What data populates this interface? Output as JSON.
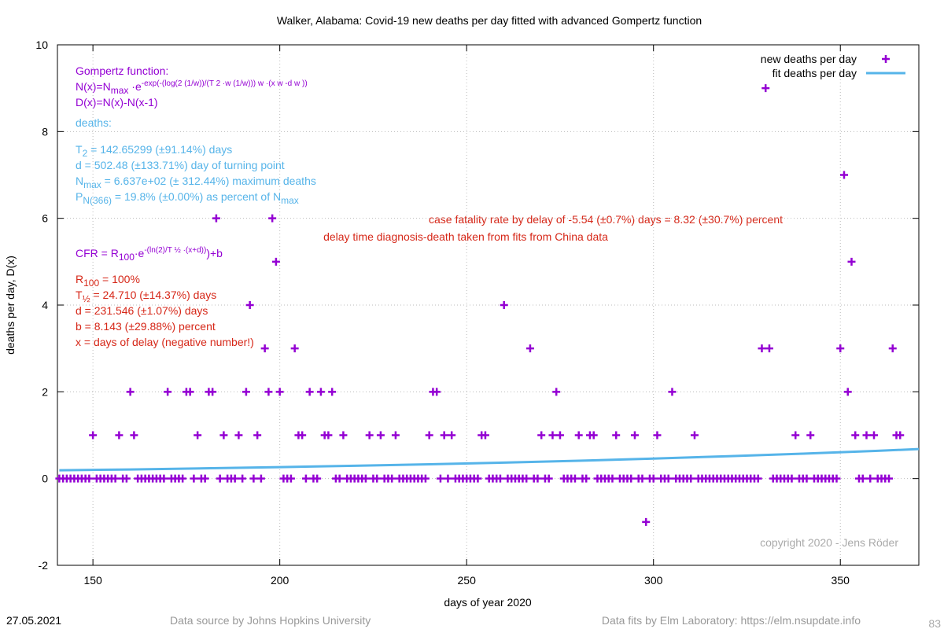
{
  "chart_data": {
    "type": "scatter",
    "title": "Walker,  Alabama: Covid-19 new deaths per day fitted with advanced Gompertz function",
    "x_label": "days of year 2020",
    "y_label": "deaths per day, D(x)",
    "xlim": [
      140.5,
      371
    ],
    "ylim": [
      -2,
      10
    ],
    "xticks": [
      150,
      200,
      250,
      300,
      350
    ],
    "yticks": [
      -2,
      0,
      2,
      4,
      6,
      8,
      10
    ],
    "grid": true,
    "legend": "top-right",
    "series": [
      {
        "name": "new deaths per day",
        "color": "#9400d3",
        "style": "points",
        "x": [
          141,
          142,
          143,
          144,
          145,
          146,
          147,
          148,
          149,
          150,
          151,
          152,
          153,
          154,
          155,
          156,
          157,
          158,
          159,
          160,
          161,
          162,
          163,
          164,
          165,
          166,
          167,
          168,
          169,
          170,
          171,
          172,
          173,
          174,
          175,
          176,
          177,
          178,
          179,
          180,
          181,
          182,
          183,
          184,
          185,
          186,
          187,
          188,
          189,
          190,
          191,
          192,
          193,
          194,
          195,
          196,
          197,
          198,
          199,
          200,
          201,
          202,
          203,
          204,
          205,
          206,
          207,
          208,
          209,
          210,
          211,
          212,
          213,
          214,
          215,
          216,
          217,
          218,
          219,
          220,
          221,
          222,
          223,
          224,
          225,
          226,
          227,
          228,
          229,
          230,
          231,
          232,
          233,
          234,
          235,
          236,
          237,
          238,
          239,
          240,
          241,
          242,
          243,
          244,
          245,
          246,
          247,
          248,
          249,
          250,
          251,
          252,
          253,
          254,
          255,
          256,
          257,
          258,
          259,
          260,
          261,
          262,
          263,
          264,
          265,
          266,
          267,
          268,
          269,
          270,
          271,
          272,
          273,
          274,
          275,
          276,
          277,
          278,
          279,
          280,
          281,
          282,
          283,
          284,
          285,
          286,
          287,
          288,
          289,
          290,
          291,
          292,
          293,
          294,
          295,
          296,
          297,
          298,
          299,
          300,
          301,
          302,
          303,
          304,
          305,
          306,
          307,
          308,
          309,
          310,
          311,
          312,
          313,
          314,
          315,
          316,
          317,
          318,
          319,
          320,
          321,
          322,
          323,
          324,
          325,
          326,
          327,
          328,
          329,
          330,
          331,
          332,
          333,
          334,
          335,
          336,
          337,
          338,
          339,
          340,
          341,
          342,
          343,
          344,
          345,
          346,
          347,
          348,
          349,
          350,
          351,
          352,
          353,
          354,
          355,
          356,
          357,
          358,
          359,
          360,
          361,
          362,
          363,
          364,
          365,
          366
        ],
        "values": [
          0,
          0,
          0,
          0,
          0,
          0,
          0,
          0,
          0,
          1,
          0,
          0,
          0,
          0,
          0,
          0,
          1,
          0,
          0,
          2,
          1,
          0,
          0,
          0,
          0,
          0,
          0,
          0,
          0,
          2,
          0,
          0,
          0,
          0,
          2,
          2,
          0,
          1,
          0,
          0,
          2,
          2,
          6,
          0,
          1,
          0,
          0,
          0,
          1,
          0,
          2,
          4,
          0,
          1,
          0,
          3,
          2,
          6,
          5,
          2,
          0,
          0,
          0,
          3,
          1,
          1,
          0,
          2,
          0,
          0,
          2,
          1,
          1,
          2,
          0,
          0,
          1,
          0,
          0,
          0,
          0,
          0,
          0,
          1,
          0,
          0,
          1,
          0,
          0,
          0,
          1,
          0,
          0,
          0,
          0,
          0,
          0,
          0,
          0,
          1,
          2,
          2,
          0,
          1,
          0,
          1,
          0,
          0,
          0,
          0,
          0,
          0,
          0,
          1,
          1,
          0,
          0,
          0,
          0,
          4,
          0,
          0,
          0,
          0,
          0,
          0,
          3,
          0,
          0,
          1,
          0,
          0,
          1,
          2,
          1,
          0,
          0,
          0,
          0,
          1,
          0,
          0,
          1,
          1,
          0,
          0,
          0,
          0,
          0,
          1,
          0,
          0,
          0,
          0,
          1,
          0,
          0,
          -1,
          0,
          0,
          1,
          0,
          0,
          0,
          2,
          0,
          0,
          0,
          0,
          0,
          1,
          0,
          0,
          0,
          0,
          0,
          0,
          0,
          0,
          0,
          0,
          0,
          0,
          0,
          0,
          0,
          0,
          0,
          3,
          9,
          3,
          0,
          0,
          0,
          0,
          0,
          0,
          1,
          0,
          0,
          0,
          1,
          0,
          0,
          0,
          0,
          0,
          0,
          0,
          3,
          7,
          2,
          5,
          1,
          0,
          0,
          1,
          0,
          1,
          0,
          0,
          0,
          0,
          3,
          1,
          1
        ]
      },
      {
        "name": "fit deaths per day",
        "color": "#56b4e9",
        "style": "line",
        "x": [
          141,
          160,
          180,
          200,
          220,
          240,
          260,
          280,
          300,
          320,
          340,
          360,
          371
        ],
        "values": [
          0.19,
          0.21,
          0.236,
          0.264,
          0.295,
          0.33,
          0.368,
          0.41,
          0.46,
          0.515,
          0.575,
          0.64,
          0.68
        ]
      }
    ],
    "annotations": [
      {
        "color": "#9400d3",
        "lines": [
          [
            {
              "normal": "Gompertz function:"
            }
          ],
          [
            {
              "normal": "N(x)=N"
            },
            {
              "sub": "max"
            },
            {
              "normal": " ·e"
            },
            {
              "sup": "-exp(-(log(2 (1/w))/(T 2 ·w (1/w))) w ·(x w -d w ))"
            }
          ],
          [
            {
              "normal": "D(x)=N(x)-N(x-1)"
            }
          ]
        ]
      },
      {
        "color": "#56b4e9",
        "lines": [
          [
            {
              "normal": "deaths:"
            }
          ]
        ]
      },
      {
        "color": "#56b4e9",
        "lines": [
          [
            {
              "normal": "T"
            },
            {
              "sub": "2"
            },
            {
              "normal": " = 142.65299 (±91.14%) days"
            }
          ],
          [
            {
              "normal": "d = 502.48 (±133.71%) day of turning point"
            }
          ],
          [
            {
              "normal": "N"
            },
            {
              "sub": "max"
            },
            {
              "normal": " = 6.637e+02 (± 312.44%) maximum deaths"
            }
          ],
          [
            {
              "normal": "P"
            },
            {
              "sub": "N(366)"
            },
            {
              "normal": " = 19.8% (±0.00%) as percent of N"
            },
            {
              "sub": "max"
            }
          ]
        ]
      },
      {
        "color": "#9400d3",
        "lines": [
          [
            {
              "normal": "CFR = R"
            },
            {
              "sub": "100"
            },
            {
              "normal": "·e"
            },
            {
              "sup": "-(ln(2)/T ½ ·(x+d))"
            },
            {
              "normal": ")+b"
            }
          ]
        ]
      },
      {
        "color": "#d62718",
        "lines": [
          [
            {
              "normal": "R"
            },
            {
              "sub": "100"
            },
            {
              "normal": " = 100%"
            }
          ],
          [
            {
              "normal": "T"
            },
            {
              "sub": "½"
            },
            {
              "normal": " = 24.710 (±14.37%) days"
            }
          ],
          [
            {
              "normal": "d = 231.546 (±1.07%) days"
            }
          ],
          [
            {
              "normal": "b = 8.143 (±29.88%) percent"
            }
          ],
          [
            {
              "normal": "x = days of delay (negative number!)"
            }
          ]
        ]
      }
    ],
    "headline": "case fatality rate by delay of -5.54 (±0.7%) days = 8.32 (±30.7%) percent",
    "headline_note": "delay time diagnosis-death taken from fits from China data",
    "copyright": "copyright 2020 - Jens Röder",
    "footer": {
      "date": "27.05.2021",
      "source": "Data source by Johns Hopkins University",
      "fits": "Data fits by Elm Laboratory: https://elm.nsupdate.info",
      "page": "83"
    }
  }
}
